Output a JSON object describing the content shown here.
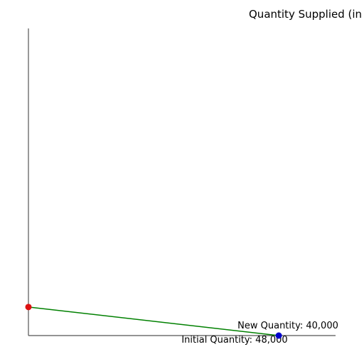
{
  "chart_data": {
    "type": "line",
    "title": "Quantity Supplied (in",
    "xlim": [
      0,
      100
    ],
    "ylim": [
      0,
      100
    ],
    "series": [
      {
        "color": "#008000",
        "x": [
          0,
          81.5
        ],
        "values": [
          9.3,
          0
        ],
        "point_colors": [
          "#dd1111",
          "#0000cc"
        ]
      }
    ],
    "annotations": [
      "New Quantity: 40,000",
      "Initial Quantity: 48,000"
    ]
  }
}
